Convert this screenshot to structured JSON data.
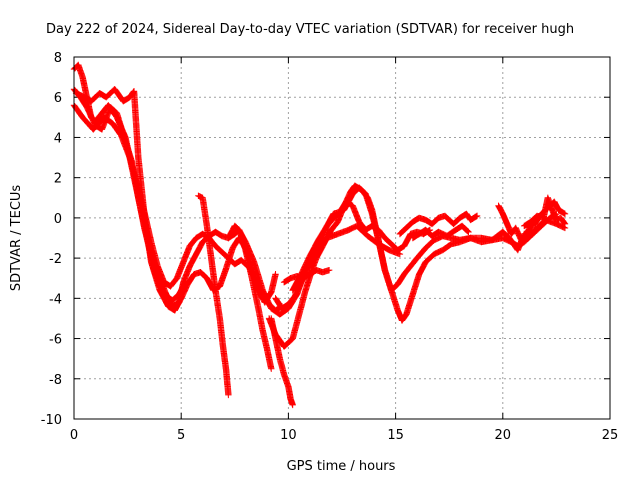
{
  "chart_data": {
    "type": "scatter",
    "title": "Day 222 of 2024, Sidereal Day-to-day VTEC variation (SDTVAR) for receiver hugh",
    "xlabel": "GPS time / hours",
    "ylabel": "SDTVAR / TECUs",
    "xlim": [
      0,
      25
    ],
    "ylim": [
      -10,
      8
    ],
    "xticks": [
      0,
      5,
      10,
      15,
      20,
      25
    ],
    "yticks": [
      -10,
      -8,
      -6,
      -4,
      -2,
      0,
      2,
      4,
      6,
      8
    ],
    "grid": true,
    "marker": "+",
    "color": "#ff0000",
    "series": [
      {
        "values": [
          [
            0.0,
            7.4
          ],
          [
            0.2,
            7.6
          ],
          [
            0.4,
            7.0
          ],
          [
            0.6,
            6.0
          ],
          [
            0.8,
            5.0
          ],
          [
            1.0,
            4.8
          ],
          [
            1.3,
            5.2
          ],
          [
            1.6,
            5.6
          ],
          [
            2.0,
            5.0
          ],
          [
            2.4,
            4.0
          ],
          [
            2.8,
            2.0
          ],
          [
            3.1,
            0.5
          ],
          [
            3.4,
            -1.0
          ],
          [
            3.7,
            -2.5
          ],
          [
            4.0,
            -3.4
          ],
          [
            4.3,
            -3.9
          ],
          [
            4.6,
            -4.1
          ],
          [
            4.9,
            -3.8
          ],
          [
            5.2,
            -3.2
          ]
        ]
      },
      {
        "values": [
          [
            0.0,
            6.4
          ],
          [
            0.3,
            6.0
          ],
          [
            0.6,
            5.5
          ],
          [
            1.0,
            4.6
          ],
          [
            1.3,
            4.4
          ],
          [
            1.7,
            5.5
          ],
          [
            2.0,
            5.2
          ],
          [
            2.4,
            3.8
          ],
          [
            2.7,
            2.8
          ],
          [
            3.0,
            1.0
          ],
          [
            3.3,
            -0.6
          ],
          [
            3.6,
            -1.8
          ],
          [
            4.0,
            -3.0
          ],
          [
            4.3,
            -3.8
          ],
          [
            4.6,
            -4.4
          ],
          [
            4.9,
            -4.2
          ],
          [
            5.1,
            -3.2
          ],
          [
            5.4,
            -2.4
          ],
          [
            5.7,
            -1.8
          ],
          [
            6.0,
            -1.2
          ],
          [
            6.3,
            -0.9
          ],
          [
            6.6,
            -0.7
          ],
          [
            6.9,
            -0.9
          ],
          [
            7.2,
            -1.0
          ],
          [
            7.5,
            -0.8
          ],
          [
            7.7,
            -0.6
          ],
          [
            8.0,
            -1.2
          ],
          [
            8.4,
            -2.2
          ],
          [
            8.8,
            -3.6
          ],
          [
            9.2,
            -4.5
          ],
          [
            9.6,
            -4.8
          ],
          [
            10.0,
            -4.5
          ],
          [
            10.4,
            -3.8
          ],
          [
            10.8,
            -2.6
          ],
          [
            11.3,
            -1.6
          ],
          [
            11.8,
            -1.0
          ],
          [
            12.3,
            -0.8
          ],
          [
            12.8,
            -0.6
          ],
          [
            13.2,
            -0.4
          ],
          [
            13.7,
            -0.9
          ],
          [
            14.2,
            -1.3
          ],
          [
            14.7,
            -1.6
          ],
          [
            15.2,
            -1.8
          ]
        ]
      },
      {
        "values": [
          [
            0.1,
            6.2
          ],
          [
            0.5,
            6.0
          ],
          [
            0.8,
            5.8
          ],
          [
            1.2,
            6.2
          ],
          [
            1.5,
            6.0
          ],
          [
            1.9,
            6.4
          ],
          [
            2.3,
            5.8
          ],
          [
            2.6,
            6.0
          ],
          [
            2.8,
            6.3
          ],
          [
            3.0,
            3.0
          ],
          [
            3.3,
            0.0
          ],
          [
            3.6,
            -2.2
          ],
          [
            4.0,
            -3.6
          ],
          [
            4.4,
            -4.4
          ],
          [
            4.7,
            -4.6
          ],
          [
            5.0,
            -4.0
          ],
          [
            5.3,
            -3.3
          ],
          [
            5.6,
            -2.8
          ],
          [
            5.9,
            -2.7
          ],
          [
            6.2,
            -3.0
          ],
          [
            6.5,
            -3.6
          ],
          [
            6.8,
            -3.4
          ],
          [
            7.1,
            -2.5
          ],
          [
            7.4,
            -1.5
          ],
          [
            7.7,
            -1.0
          ],
          [
            8.0,
            -1.5
          ],
          [
            8.3,
            -2.5
          ],
          [
            8.6,
            -3.6
          ],
          [
            8.9,
            -4.2
          ],
          [
            9.2,
            -3.7
          ],
          [
            9.4,
            -2.8
          ]
        ]
      },
      {
        "values": [
          [
            0.0,
            5.6
          ],
          [
            0.4,
            5.0
          ],
          [
            0.9,
            4.4
          ],
          [
            1.4,
            5.0
          ],
          [
            1.8,
            4.7
          ],
          [
            2.2,
            4.1
          ],
          [
            2.6,
            3.0
          ],
          [
            3.0,
            1.5
          ],
          [
            3.3,
            0.2
          ],
          [
            3.6,
            -1.2
          ],
          [
            3.9,
            -2.4
          ],
          [
            4.2,
            -3.2
          ],
          [
            4.5,
            -3.4
          ],
          [
            4.8,
            -3.0
          ],
          [
            5.1,
            -2.2
          ],
          [
            5.4,
            -1.4
          ],
          [
            5.7,
            -1.0
          ],
          [
            6.0,
            -0.8
          ],
          [
            6.3,
            -1.0
          ],
          [
            6.6,
            -1.4
          ],
          [
            6.9,
            -1.7
          ],
          [
            7.2,
            -2.0
          ],
          [
            7.5,
            -2.3
          ],
          [
            7.8,
            -2.1
          ],
          [
            8.2,
            -2.5
          ],
          [
            8.6,
            -3.4
          ],
          [
            9.0,
            -4.2
          ],
          [
            9.4,
            -4.6
          ],
          [
            9.7,
            -4.4
          ]
        ]
      },
      {
        "values": [
          [
            5.8,
            1.1
          ],
          [
            6.0,
            1.0
          ],
          [
            6.2,
            -0.4
          ],
          [
            6.4,
            -2.0
          ],
          [
            6.6,
            -3.6
          ],
          [
            6.8,
            -5.0
          ],
          [
            6.95,
            -6.4
          ],
          [
            7.1,
            -7.6
          ],
          [
            7.2,
            -8.8
          ]
        ]
      },
      {
        "values": [
          [
            7.2,
            -1.0
          ],
          [
            7.5,
            -0.4
          ],
          [
            7.7,
            -0.6
          ],
          [
            8.0,
            -1.6
          ],
          [
            8.3,
            -3.0
          ],
          [
            8.6,
            -4.5
          ],
          [
            8.8,
            -5.6
          ],
          [
            9.0,
            -6.5
          ],
          [
            9.2,
            -7.5
          ]
        ]
      },
      {
        "values": [
          [
            9.2,
            -5.0
          ],
          [
            9.4,
            -6.0
          ],
          [
            9.6,
            -7.0
          ],
          [
            9.8,
            -7.8
          ],
          [
            10.0,
            -8.4
          ],
          [
            10.1,
            -9.0
          ],
          [
            10.2,
            -9.3
          ]
        ]
      },
      {
        "values": [
          [
            9.1,
            -5.0
          ],
          [
            9.4,
            -5.8
          ],
          [
            9.8,
            -6.4
          ],
          [
            10.2,
            -6.0
          ],
          [
            10.5,
            -4.8
          ],
          [
            10.8,
            -3.6
          ],
          [
            11.1,
            -2.6
          ],
          [
            11.3,
            -2.0
          ],
          [
            11.6,
            -1.4
          ],
          [
            12.0,
            -0.6
          ],
          [
            12.3,
            -0.2
          ],
          [
            12.6,
            0.6
          ],
          [
            12.9,
            1.3
          ],
          [
            13.1,
            1.6
          ],
          [
            13.4,
            1.4
          ],
          [
            13.7,
            1.0
          ],
          [
            13.9,
            0.4
          ],
          [
            14.1,
            -0.6
          ],
          [
            14.3,
            -1.6
          ],
          [
            14.5,
            -2.6
          ],
          [
            14.8,
            -3.6
          ],
          [
            15.1,
            -4.6
          ],
          [
            15.3,
            -5.1
          ],
          [
            15.5,
            -4.8
          ],
          [
            15.8,
            -3.8
          ],
          [
            16.1,
            -2.8
          ],
          [
            16.4,
            -2.2
          ],
          [
            16.8,
            -1.8
          ],
          [
            17.2,
            -1.6
          ],
          [
            17.6,
            -1.3
          ],
          [
            18.0,
            -1.2
          ],
          [
            18.5,
            -1.0
          ],
          [
            19.0,
            -1.0
          ],
          [
            19.5,
            -1.1
          ],
          [
            20.0,
            -1.0
          ],
          [
            20.4,
            -1.2
          ],
          [
            20.7,
            -1.4
          ],
          [
            21.0,
            -1.2
          ],
          [
            21.4,
            -0.8
          ],
          [
            21.8,
            -0.4
          ],
          [
            22.2,
            0.0
          ],
          [
            22.5,
            0.2
          ]
        ]
      },
      {
        "values": [
          [
            10.2,
            -3.6
          ],
          [
            10.6,
            -2.8
          ],
          [
            11.0,
            -1.9
          ],
          [
            11.4,
            -1.1
          ],
          [
            11.8,
            -0.4
          ],
          [
            12.2,
            0.1
          ],
          [
            12.6,
            0.4
          ],
          [
            13.0,
            1.2
          ],
          [
            13.3,
            1.5
          ],
          [
            13.6,
            1.2
          ],
          [
            13.9,
            0.2
          ],
          [
            14.2,
            -1.1
          ],
          [
            14.5,
            -2.6
          ],
          [
            14.8,
            -3.6
          ],
          [
            15.1,
            -3.3
          ],
          [
            15.4,
            -2.8
          ],
          [
            15.7,
            -2.4
          ],
          [
            16.0,
            -2.0
          ],
          [
            16.4,
            -1.5
          ],
          [
            16.8,
            -1.1
          ],
          [
            17.2,
            -0.9
          ],
          [
            17.6,
            -1.0
          ],
          [
            18.0,
            -1.1
          ],
          [
            18.5,
            -1.0
          ],
          [
            19.0,
            -1.2
          ],
          [
            19.5,
            -1.1
          ],
          [
            20.0,
            -0.7
          ],
          [
            20.3,
            -1.0
          ],
          [
            20.7,
            -1.6
          ],
          [
            21.0,
            -0.8
          ],
          [
            21.5,
            -0.6
          ],
          [
            22.0,
            -0.1
          ],
          [
            22.5,
            -0.3
          ],
          [
            22.9,
            -0.5
          ]
        ]
      },
      {
        "values": [
          [
            9.4,
            -4.0
          ],
          [
            9.7,
            -4.5
          ],
          [
            10.0,
            -4.3
          ],
          [
            10.3,
            -3.9
          ],
          [
            10.6,
            -3.2
          ],
          [
            10.9,
            -2.5
          ],
          [
            11.2,
            -2.0
          ],
          [
            11.5,
            -1.2
          ],
          [
            11.8,
            -0.4
          ],
          [
            12.1,
            0.2
          ],
          [
            12.4,
            0.3
          ],
          [
            12.7,
            0.8
          ],
          [
            13.0,
            0.6
          ],
          [
            13.3,
            -0.2
          ],
          [
            13.6,
            -0.6
          ],
          [
            13.9,
            -0.4
          ],
          [
            14.2,
            -0.6
          ],
          [
            14.5,
            -1.0
          ],
          [
            14.8,
            -1.3
          ],
          [
            15.1,
            -1.6
          ],
          [
            15.4,
            -1.4
          ],
          [
            15.7,
            -0.8
          ],
          [
            16.0,
            -0.7
          ],
          [
            16.3,
            -0.8
          ],
          [
            16.6,
            -0.6
          ]
        ]
      },
      {
        "values": [
          [
            9.8,
            -3.2
          ],
          [
            10.1,
            -3.0
          ],
          [
            10.4,
            -2.9
          ],
          [
            10.7,
            -3.0
          ],
          [
            11.0,
            -2.8
          ],
          [
            11.3,
            -2.6
          ],
          [
            11.6,
            -2.7
          ],
          [
            11.9,
            -2.6
          ]
        ]
      },
      {
        "values": [
          [
            15.2,
            -0.8
          ],
          [
            15.5,
            -0.5
          ],
          [
            15.8,
            -0.2
          ],
          [
            16.1,
            0.0
          ],
          [
            16.4,
            -0.1
          ],
          [
            16.7,
            -0.3
          ],
          [
            17.0,
            0.0
          ],
          [
            17.3,
            0.1
          ],
          [
            17.7,
            -0.3
          ],
          [
            18.0,
            0.0
          ],
          [
            18.3,
            0.2
          ],
          [
            18.5,
            -0.1
          ],
          [
            18.8,
            0.1
          ]
        ]
      },
      {
        "values": [
          [
            15.8,
            -1.0
          ],
          [
            16.1,
            -0.8
          ],
          [
            16.4,
            -0.6
          ],
          [
            16.7,
            -0.9
          ],
          [
            17.0,
            -0.7
          ],
          [
            17.4,
            -0.9
          ],
          [
            17.8,
            -0.6
          ],
          [
            18.1,
            -0.4
          ],
          [
            18.4,
            -0.7
          ]
        ]
      },
      {
        "values": [
          [
            19.8,
            0.6
          ],
          [
            20.0,
            0.2
          ],
          [
            20.2,
            -0.3
          ],
          [
            20.4,
            -0.8
          ],
          [
            20.6,
            -0.5
          ],
          [
            20.9,
            -1.2
          ],
          [
            21.1,
            -0.8
          ],
          [
            21.3,
            -0.4
          ],
          [
            21.5,
            -0.3
          ],
          [
            21.8,
            0.2
          ],
          [
            22.0,
            0.4
          ],
          [
            22.2,
            0.6
          ],
          [
            22.4,
            0.8
          ],
          [
            22.6,
            0.4
          ],
          [
            22.9,
            0.2
          ]
        ]
      },
      {
        "values": [
          [
            21.0,
            -0.4
          ],
          [
            21.3,
            -0.2
          ],
          [
            21.6,
            0.1
          ],
          [
            21.9,
            0.0
          ],
          [
            22.1,
            1.0
          ],
          [
            22.3,
            0.4
          ],
          [
            22.5,
            -0.1
          ],
          [
            22.7,
            0.0
          ],
          [
            22.9,
            -0.3
          ]
        ]
      }
    ]
  }
}
